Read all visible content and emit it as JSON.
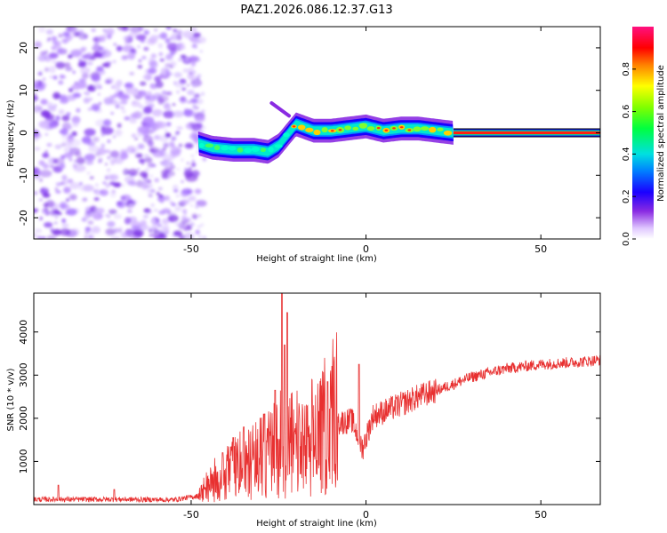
{
  "title": "PAZ1.2026.086.12.37.G13",
  "colors": {
    "snr_line": "#e83030",
    "frame": "#000000"
  },
  "chart_data": [
    {
      "type": "heatmap",
      "title": "PAZ1.2026.086.12.37.G13",
      "xlabel": "Height of straight line (km)",
      "ylabel": "Frequency (Hz)",
      "xlim": [
        -95,
        67
      ],
      "ylim": [
        -25,
        25
      ],
      "xticks": [
        "-50",
        "0",
        "50"
      ],
      "yticks": [
        "-20",
        "-10",
        "0",
        "10",
        "20"
      ],
      "colorbar": {
        "label": "Normalized spectral amplitude",
        "range": [
          0,
          1
        ],
        "ticks": [
          "0.0",
          "0.2",
          "0.4",
          "0.6",
          "0.8"
        ]
      },
      "noise_region_x": [
        -95,
        -48
      ],
      "ridge": [
        {
          "x": -48,
          "f": -2.5
        },
        {
          "x": -44,
          "f": -3.5
        },
        {
          "x": -38,
          "f": -4.0
        },
        {
          "x": -32,
          "f": -4.0
        },
        {
          "x": -28,
          "f": -4.5
        },
        {
          "x": -25,
          "f": -3.0
        },
        {
          "x": -22,
          "f": 0.0
        },
        {
          "x": -20,
          "f": 2.0
        },
        {
          "x": -15,
          "f": 0.5
        },
        {
          "x": -10,
          "f": 0.5
        },
        {
          "x": -5,
          "f": 1.0
        },
        {
          "x": 0,
          "f": 1.5
        },
        {
          "x": 5,
          "f": 0.5
        },
        {
          "x": 10,
          "f": 1.0
        },
        {
          "x": 15,
          "f": 1.0
        },
        {
          "x": 20,
          "f": 0.5
        },
        {
          "x": 25,
          "f": 0.0
        },
        {
          "x": 67,
          "f": 0.0
        }
      ],
      "side_lobe": {
        "x": [
          -27,
          -22
        ],
        "f": [
          7,
          4
        ]
      }
    },
    {
      "type": "line",
      "xlabel": "Height of straight line (km)",
      "ylabel": "SNR (10 * v/v)",
      "xlim": [
        -95,
        67
      ],
      "ylim": [
        0,
        4900
      ],
      "xticks": [
        "-50",
        "0",
        "50"
      ],
      "yticks": [
        "1000",
        "2000",
        "3000",
        "4000"
      ],
      "series": [
        {
          "name": "SNR",
          "envelope": [
            {
              "x": -95,
              "snr": 120
            },
            {
              "x": -70,
              "snr": 120
            },
            {
              "x": -55,
              "snr": 110
            },
            {
              "x": -48,
              "snr": 200
            },
            {
              "x": -44,
              "snr": 450
            },
            {
              "x": -40,
              "snr": 700
            },
            {
              "x": -35,
              "snr": 900
            },
            {
              "x": -30,
              "snr": 1100
            },
            {
              "x": -25,
              "snr": 1300
            },
            {
              "x": -20,
              "snr": 1200
            },
            {
              "x": -15,
              "snr": 1350
            },
            {
              "x": -12,
              "snr": 1700
            },
            {
              "x": -8,
              "snr": 1900
            },
            {
              "x": -4,
              "snr": 1950
            },
            {
              "x": -1,
              "snr": 1300
            },
            {
              "x": 2,
              "snr": 2050
            },
            {
              "x": 8,
              "snr": 2250
            },
            {
              "x": 15,
              "snr": 2500
            },
            {
              "x": 22,
              "snr": 2700
            },
            {
              "x": 30,
              "snr": 2950
            },
            {
              "x": 40,
              "snr": 3150
            },
            {
              "x": 50,
              "snr": 3250
            },
            {
              "x": 60,
              "snr": 3300
            },
            {
              "x": 67,
              "snr": 3350
            }
          ],
          "spikes": [
            {
              "x": -24,
              "snr": 4900
            },
            {
              "x": -22.5,
              "snr": 4450
            },
            {
              "x": -23.3,
              "snr": 3700
            },
            {
              "x": -26,
              "snr": 2650
            },
            {
              "x": -29,
              "snr": 2100
            },
            {
              "x": -35,
              "snr": 1800
            },
            {
              "x": -38,
              "snr": 1550
            },
            {
              "x": -41,
              "snr": 1200
            },
            {
              "x": -11,
              "snr": 2850
            },
            {
              "x": -2,
              "snr": 3250
            },
            {
              "x": -88,
              "snr": 450
            },
            {
              "x": -72,
              "snr": 350
            }
          ]
        }
      ]
    }
  ]
}
